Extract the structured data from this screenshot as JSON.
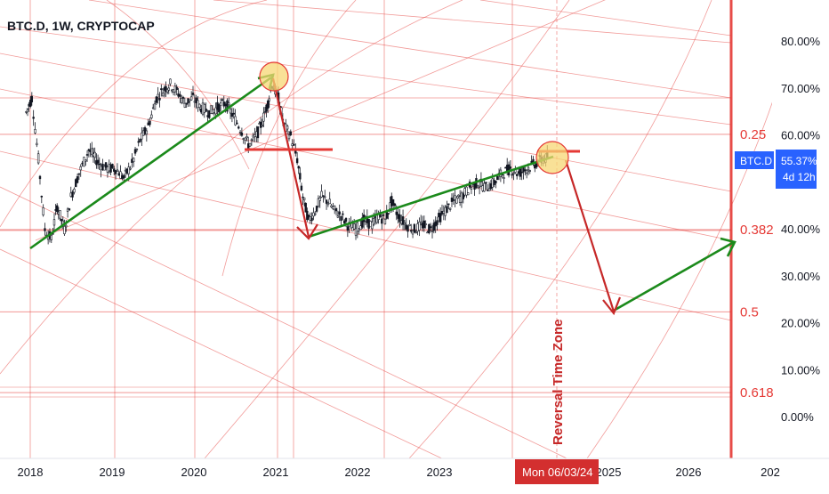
{
  "header": {
    "title": "BTC.D, 1W, CRYPTOCAP"
  },
  "colors": {
    "fib_red": "#e53935",
    "dark_red": "#c62828",
    "green": "#1b8a1b",
    "candle": "#131722",
    "circle_fill": "#f7d774",
    "price_tag": "#2962ff",
    "date_tag": "#d32f2f",
    "axis_text": "#131722"
  },
  "chart_data": {
    "type": "candlestick",
    "symbol": "BTC.D",
    "interval": "1W",
    "source": "CRYPTOCAP",
    "x_axis": {
      "ticks": [
        "2018",
        "2019",
        "2020",
        "2021",
        "2022",
        "2023",
        "2025",
        "2026",
        "202"
      ]
    },
    "y_axis": {
      "scale": "percent",
      "ylim": [
        -3,
        87
      ],
      "ticks": [
        "80.00%",
        "70.00%",
        "60.00%",
        "40.00%",
        "30.00%",
        "20.00%",
        "10.00%",
        "0.00%"
      ],
      "tick_values": [
        80,
        70,
        60,
        40,
        30,
        20,
        10,
        0
      ]
    },
    "current_price": {
      "symbol_label": "BTC.D",
      "value_label": "55.37%",
      "countdown": "4d 12h",
      "value": 55.37
    },
    "date_marker": "Mon 06/03/24",
    "fib_levels": [
      {
        "label": "0.25",
        "value": 60.3
      },
      {
        "label": "0.382",
        "value": 40.0
      },
      {
        "label": "0.5",
        "value": 22.5
      },
      {
        "label": "0.618",
        "value": 5.3
      }
    ],
    "annotation": "Reversal Time Zone",
    "price_path": [
      [
        2017.95,
        65
      ],
      [
        2018.02,
        68
      ],
      [
        2018.1,
        55
      ],
      [
        2018.18,
        40
      ],
      [
        2018.26,
        38
      ],
      [
        2018.33,
        45
      ],
      [
        2018.42,
        40
      ],
      [
        2018.5,
        47
      ],
      [
        2018.6,
        52
      ],
      [
        2018.72,
        57
      ],
      [
        2018.85,
        54
      ],
      [
        2018.95,
        53
      ],
      [
        2019.05,
        53
      ],
      [
        2019.15,
        51
      ],
      [
        2019.25,
        54
      ],
      [
        2019.35,
        59
      ],
      [
        2019.45,
        62
      ],
      [
        2019.55,
        68
      ],
      [
        2019.65,
        70
      ],
      [
        2019.72,
        71
      ],
      [
        2019.82,
        69
      ],
      [
        2019.9,
        67
      ],
      [
        2020.0,
        68
      ],
      [
        2020.1,
        66
      ],
      [
        2020.2,
        65
      ],
      [
        2020.3,
        66
      ],
      [
        2020.4,
        67
      ],
      [
        2020.5,
        64
      ],
      [
        2020.6,
        61
      ],
      [
        2020.68,
        58
      ],
      [
        2020.78,
        60
      ],
      [
        2020.85,
        63
      ],
      [
        2020.92,
        67
      ],
      [
        2020.97,
        71
      ],
      [
        2021.05,
        68
      ],
      [
        2021.12,
        62
      ],
      [
        2021.2,
        60
      ],
      [
        2021.28,
        55
      ],
      [
        2021.35,
        47
      ],
      [
        2021.42,
        42
      ],
      [
        2021.5,
        44
      ],
      [
        2021.58,
        47
      ],
      [
        2021.66,
        46
      ],
      [
        2021.74,
        44
      ],
      [
        2021.82,
        43
      ],
      [
        2021.9,
        41
      ],
      [
        2022.0,
        40
      ],
      [
        2022.1,
        42
      ],
      [
        2022.2,
        41
      ],
      [
        2022.28,
        43
      ],
      [
        2022.36,
        42
      ],
      [
        2022.44,
        46
      ],
      [
        2022.52,
        43
      ],
      [
        2022.62,
        41
      ],
      [
        2022.72,
        40
      ],
      [
        2022.82,
        41
      ],
      [
        2022.92,
        40
      ],
      [
        2023.0,
        42
      ],
      [
        2023.1,
        44
      ],
      [
        2023.2,
        46
      ],
      [
        2023.3,
        47
      ],
      [
        2023.4,
        49
      ],
      [
        2023.5,
        50
      ],
      [
        2023.6,
        49
      ],
      [
        2023.7,
        50
      ],
      [
        2023.8,
        52
      ],
      [
        2023.9,
        53
      ],
      [
        2024.0,
        52
      ],
      [
        2024.1,
        53
      ],
      [
        2024.2,
        54
      ],
      [
        2024.3,
        55
      ],
      [
        2024.37,
        55.4
      ]
    ]
  }
}
